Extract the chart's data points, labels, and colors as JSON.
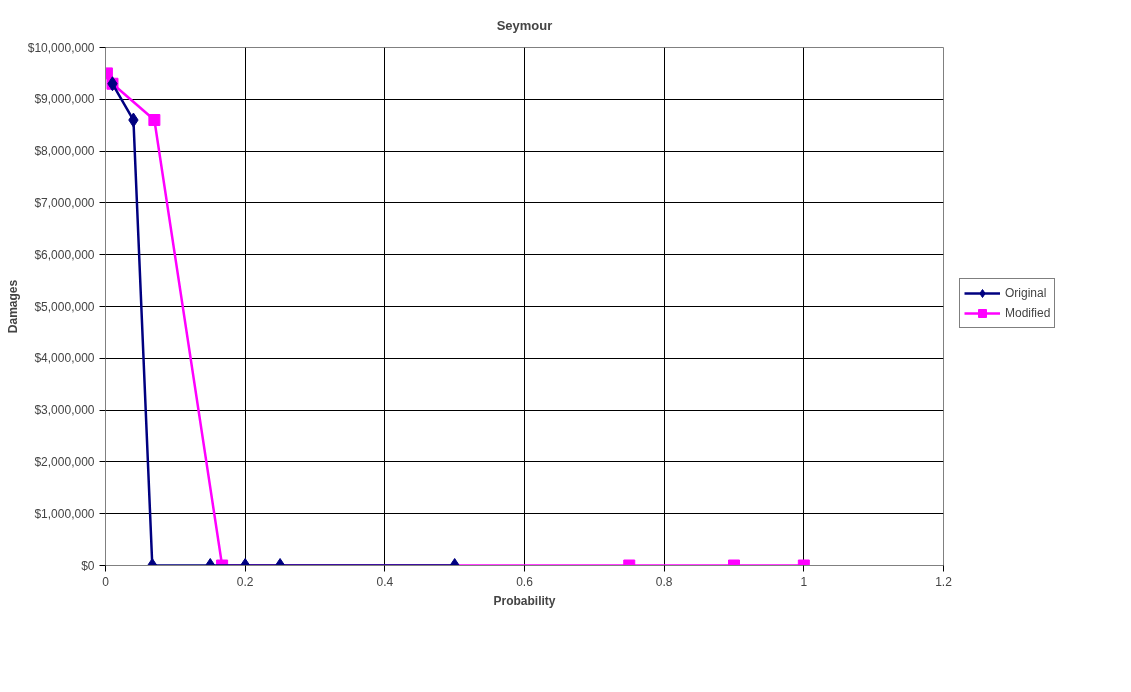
{
  "chart_data": {
    "type": "line",
    "title": "Seymour",
    "xlabel": "Probability",
    "ylabel": "Damages",
    "xlim": [
      0,
      1.2
    ],
    "xticks": [
      0,
      0.2,
      0.4,
      0.6,
      0.8,
      1,
      1.2
    ],
    "ylim": [
      0,
      10000000
    ],
    "yticks": [
      {
        "value": 0,
        "label": "$0"
      },
      {
        "value": 1000000,
        "label": "$1,000,000"
      },
      {
        "value": 2000000,
        "label": "$2,000,000"
      },
      {
        "value": 3000000,
        "label": "$3,000,000"
      },
      {
        "value": 4000000,
        "label": "$4,000,000"
      },
      {
        "value": 5000000,
        "label": "$5,000,000"
      },
      {
        "value": 6000000,
        "label": "$6,000,000"
      },
      {
        "value": 7000000,
        "label": "$7,000,000"
      },
      {
        "value": 8000000,
        "label": "$8,000,000"
      },
      {
        "value": 9000000,
        "label": "$9,000,000"
      },
      {
        "value": 10000000,
        "label": "$10,000,000"
      }
    ],
    "grid": true,
    "legend": "right",
    "series": [
      {
        "name": "Original",
        "color": "#000080",
        "marker": "diamond",
        "x": [
          0.01,
          0.04,
          0.067,
          0.15,
          0.2,
          0.25,
          0.5
        ],
        "values": [
          9300000,
          8600000,
          0,
          0,
          0,
          0,
          0
        ]
      },
      {
        "name": "Modified",
        "color": "#ff00ff",
        "marker": "square",
        "x": [
          0.002,
          0.01,
          0.07,
          0.167,
          0.75,
          0.9,
          1
        ],
        "values": [
          9500000,
          9300000,
          8600000,
          0,
          0,
          0,
          0
        ]
      }
    ]
  }
}
